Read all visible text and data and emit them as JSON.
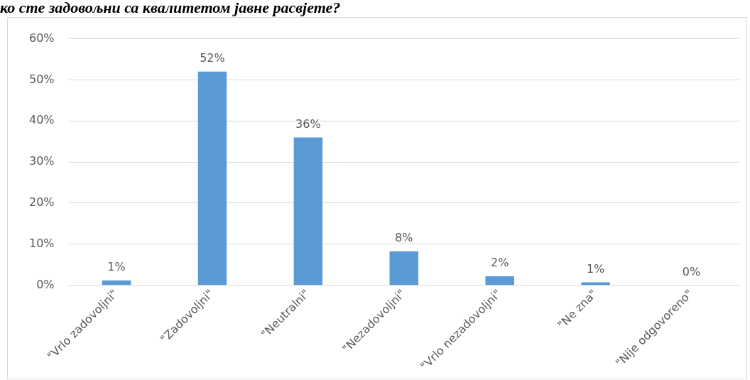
{
  "chart_data": {
    "type": "bar",
    "title": "ко сте задовољни са квалитетом јавне расвјете?",
    "categories": [
      "\"Vrlo zadovoljni\"",
      "\"Zadovoljni\"",
      "\"Neutralni\"",
      "\"Nezadovoljni\"",
      "\"Vrlo nezadovoljni\"",
      "\"Ne zna\"",
      "\"Nije odgovoreno\""
    ],
    "values": [
      1.2,
      52,
      36,
      8.3,
      2.2,
      0.7,
      0
    ],
    "value_labels": [
      "1%",
      "52%",
      "36%",
      "8%",
      "2%",
      "1%",
      "0%"
    ],
    "color": "#5b9bd5",
    "ylim": [
      0,
      60
    ],
    "yticks": [
      {
        "value": 0,
        "label": "0%"
      },
      {
        "value": 10,
        "label": "10%"
      },
      {
        "value": 20,
        "label": "20%"
      },
      {
        "value": 30,
        "label": "30%"
      },
      {
        "value": 40,
        "label": "40%"
      },
      {
        "value": 50,
        "label": "50%"
      },
      {
        "value": 60,
        "label": "60%"
      }
    ],
    "grid": "y",
    "legend": false
  }
}
